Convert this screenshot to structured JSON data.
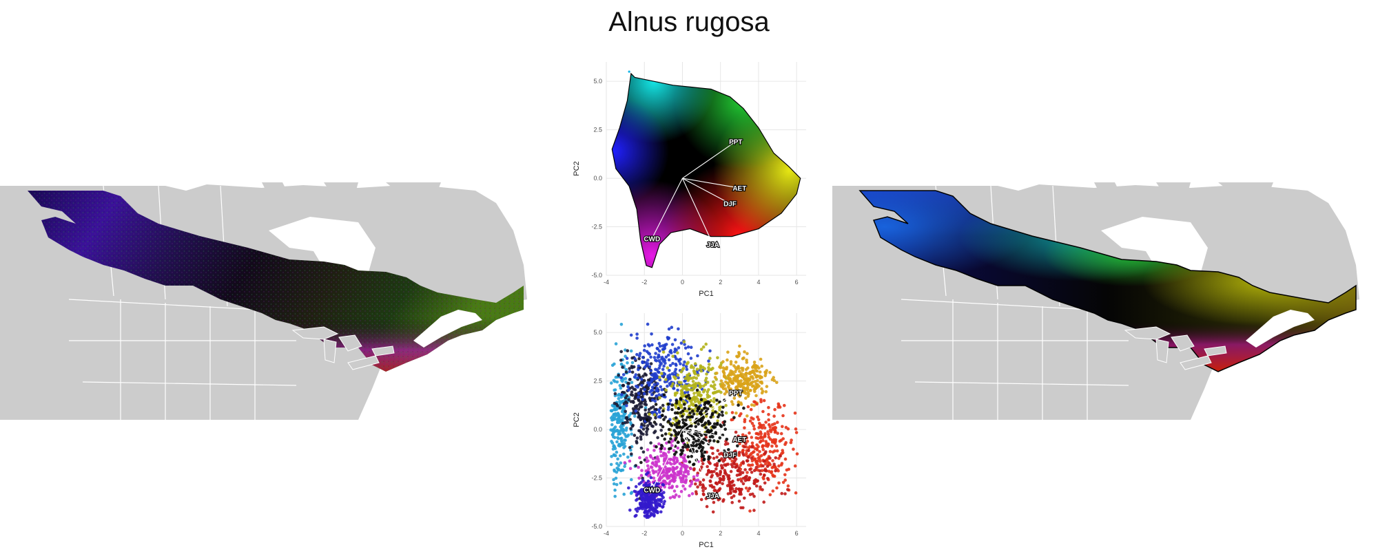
{
  "title": "Alnus rugosa",
  "colors": {
    "land": "#cccccc",
    "water": "#ffffff",
    "border": "#ffffff",
    "grid": "#e6e6e6",
    "axis_text": "#4d4d4d"
  },
  "chart_data": [
    {
      "id": "pca-hull",
      "type": "scatter",
      "title": "",
      "xlabel": "PC1",
      "ylabel": "PC2",
      "xlim": [
        -4,
        6.5
      ],
      "ylim": [
        -5,
        6
      ],
      "xticks": [
        -4,
        -2,
        0,
        2,
        4,
        6
      ],
      "yticks": [
        -5.0,
        -2.5,
        0.0,
        2.5,
        5.0
      ],
      "ytick_labels": [
        "-5.0",
        "-2.5",
        "0.0",
        "2.5",
        "5.0"
      ],
      "grid": true,
      "style": "continuous color field inside outlined convex region",
      "vectors": [
        {
          "label": "PPT",
          "x": 2.8,
          "y": 1.9
        },
        {
          "label": "AET",
          "x": 3.0,
          "y": -0.5
        },
        {
          "label": "DJF",
          "x": 2.5,
          "y": -1.3
        },
        {
          "label": "JJA",
          "x": 1.6,
          "y": -3.4
        },
        {
          "label": "CWD",
          "x": -1.6,
          "y": -3.1
        }
      ]
    },
    {
      "id": "pca-points",
      "type": "scatter",
      "title": "",
      "xlabel": "PC1",
      "ylabel": "PC2",
      "xlim": [
        -4,
        6.5
      ],
      "ylim": [
        -5,
        6
      ],
      "xticks": [
        -4,
        -2,
        0,
        2,
        4,
        6
      ],
      "yticks": [
        -5.0,
        -2.5,
        0.0,
        2.5,
        5.0
      ],
      "ytick_labels": [
        "-5.0",
        "-2.5",
        "0.0",
        "2.5",
        "5.0"
      ],
      "grid": true,
      "style": "dense point cloud colored by cluster",
      "vectors": [
        {
          "label": "PPT",
          "x": 2.8,
          "y": 1.9
        },
        {
          "label": "AET",
          "x": 3.0,
          "y": -0.5
        },
        {
          "label": "DJF",
          "x": 2.5,
          "y": -1.3
        },
        {
          "label": "JJA",
          "x": 1.6,
          "y": -3.4
        },
        {
          "label": "CWD",
          "x": -1.6,
          "y": -3.1
        }
      ],
      "clusters": [
        {
          "color": "#29a3d6",
          "cx": -3.3,
          "cy": 0.5,
          "sx": 0.35,
          "sy": 1.6
        },
        {
          "color": "#1a1a33",
          "cx": -2.1,
          "cy": 1.3,
          "sx": 0.6,
          "sy": 1.2
        },
        {
          "color": "#1f3dcc",
          "cx": -1.0,
          "cy": 3.0,
          "sx": 0.9,
          "sy": 1.1
        },
        {
          "color": "#b3b31a",
          "cx": 0.6,
          "cy": 1.8,
          "sx": 0.8,
          "sy": 0.9
        },
        {
          "color": "#d9a31a",
          "cx": 3.2,
          "cy": 2.6,
          "sx": 0.6,
          "sy": 0.6
        },
        {
          "color": "#e63319",
          "cx": 4.3,
          "cy": -0.9,
          "sx": 0.9,
          "sy": 1.1
        },
        {
          "color": "#c01a1a",
          "cx": 2.6,
          "cy": -2.3,
          "sx": 1.0,
          "sy": 0.8
        },
        {
          "color": "#cc33cc",
          "cx": -0.8,
          "cy": -2.2,
          "sx": 0.7,
          "sy": 0.6
        },
        {
          "color": "#3319cc",
          "cx": -1.8,
          "cy": -3.6,
          "sx": 0.35,
          "sy": 0.5
        },
        {
          "color": "#0a0a0a",
          "cx": 0.5,
          "cy": 0.0,
          "sx": 0.9,
          "sy": 0.9
        }
      ]
    }
  ],
  "maps": [
    {
      "id": "map-observed",
      "style": "speckled raster colored by PCA scores"
    },
    {
      "id": "map-smoothed",
      "style": "smooth raster colored by PCA scores with range outline"
    }
  ]
}
